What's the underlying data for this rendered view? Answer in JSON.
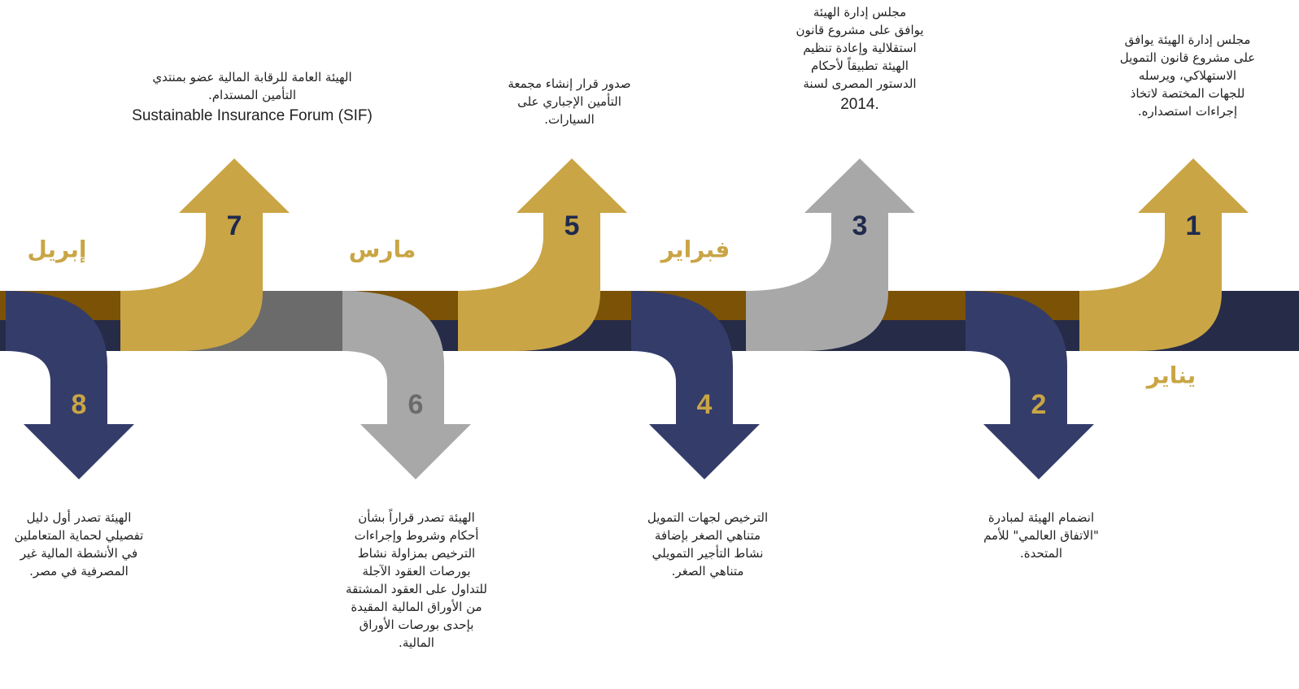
{
  "months": [
    "يناير",
    "فبراير",
    "مارس",
    "إبريل"
  ],
  "events": [
    {
      "number": 1,
      "lines": [
        "مجلس إدارة الهيئة يوافق",
        "على مشروع قانون التمويل",
        "الاستهلاكي، ويرسله",
        "للجهات المختصة لاتخاذ",
        "إجراءات استصداره."
      ]
    },
    {
      "number": 2,
      "lines": [
        "انضمام الهيئة لمبادرة",
        "\"الاتفاق العالمي\" للأمم",
        "المتحدة."
      ]
    },
    {
      "number": 3,
      "lines": [
        "مجلس إدارة الهيئة",
        "يوافق على مشروع قانون",
        "استقلالية وإعادة تنظيم",
        "الهيئة تطبيقاً لأحكام",
        "الدستور المصرى لسنة",
        "2014."
      ]
    },
    {
      "number": 4,
      "lines": [
        "الترخيص لجهات التمويل",
        "متناهي الصغر بإضافة",
        "نشاط التأجير التمويلي",
        "متناهي الصغر."
      ]
    },
    {
      "number": 5,
      "lines": [
        "صدور قرار إنشاء مجمعة",
        "التأمين الإجباري على",
        "السيارات."
      ]
    },
    {
      "number": 6,
      "lines": [
        "الهيئة تصدر قراراً بشأن",
        "أحكام وشروط وإجراءات",
        "الترخيص بمزاولة نشاط",
        "بورصات العقود الآجلة",
        "للتداول على العقود المشتقة",
        "من الأوراق المالية المقيدة",
        "بإحدى بورصات الأوراق",
        "المالية."
      ]
    },
    {
      "number": 7,
      "lines": [
        "الهيئة العامة للرقابة المالية عضو بمنتدي",
        "التأمين المستدام.",
        "Sustainable Insurance Forum (SIF)"
      ]
    },
    {
      "number": 8,
      "lines": [
        "الهيئة تصدر أول دليل",
        "تفصيلي لحماية المتعاملين",
        "في الأنشطة المالية غير",
        "المصرفية في مصر."
      ]
    }
  ]
}
